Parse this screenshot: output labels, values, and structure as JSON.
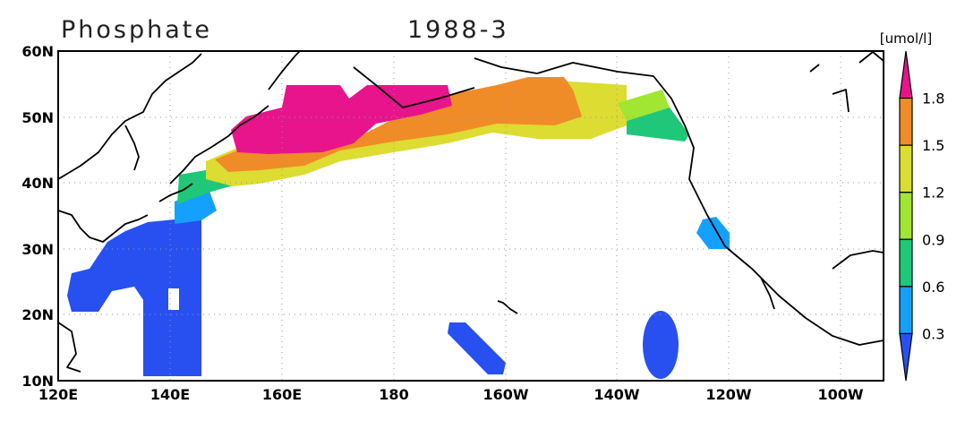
{
  "header": {
    "title": "Phosphate",
    "period": "1988-3",
    "unit": "[umol/l]"
  },
  "axes": {
    "latitude": [
      "60N",
      "50N",
      "40N",
      "30N",
      "20N",
      "10N"
    ],
    "longitude": [
      "120E",
      "140E",
      "160E",
      "180",
      "160W",
      "140W",
      "120W",
      "100W"
    ]
  },
  "colorbar": {
    "labels": [
      "1.8",
      "1.5",
      "1.2",
      "0.9",
      "0.6",
      "0.3"
    ],
    "colors": [
      "#e8148c",
      "#f08c28",
      "#dcdc32",
      "#a0e632",
      "#1ec878",
      "#14a0ff",
      "#2850f0"
    ]
  }
}
